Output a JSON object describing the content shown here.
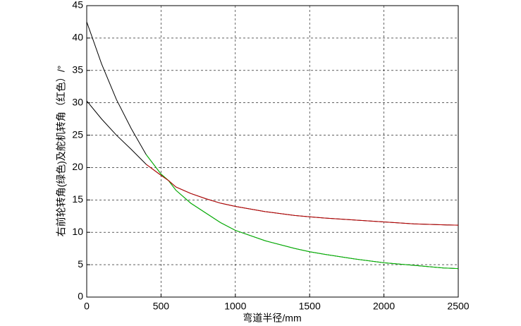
{
  "chart_data": {
    "type": "line",
    "x_label": "弯道半径/mm",
    "y_label": "右前轮转角(绿色)及舵机转角（红色）/°",
    "x": [
      0,
      100,
      200,
      300,
      400,
      500,
      550,
      600,
      700,
      800,
      900,
      1000,
      1200,
      1400,
      1500,
      1600,
      1800,
      2000,
      2200,
      2400,
      2500
    ],
    "series": [
      {
        "color": "#000000",
        "values": [
          42.5,
          36,
          30.5,
          26,
          22,
          19,
          18,
          16.5,
          14.5,
          13,
          11.5,
          10.3,
          8.7,
          7.5,
          7,
          6.6,
          5.9,
          5.3,
          4.9,
          4.5,
          4.4
        ]
      },
      {
        "color": "#000000",
        "values": [
          30.3,
          27.5,
          25,
          22.8,
          20.5,
          18.8,
          18,
          17,
          16,
          15.2,
          14.5,
          14,
          13.2,
          12.6,
          12.4,
          12.2,
          11.9,
          11.6,
          11.3,
          11.15,
          11.1
        ]
      },
      {
        "color": "#00c000",
        "values": [
          null,
          null,
          null,
          null,
          22,
          19,
          18,
          16.5,
          14.5,
          13,
          11.5,
          10.3,
          8.7,
          7.5,
          7,
          6.6,
          5.9,
          5.3,
          4.9,
          4.5,
          4.4
        ]
      },
      {
        "color": "#c00000",
        "values": [
          null,
          null,
          null,
          null,
          20.5,
          18.8,
          18,
          17,
          16,
          15.2,
          14.5,
          14,
          13.2,
          12.6,
          12.4,
          12.2,
          11.9,
          11.6,
          11.3,
          11.15,
          11.1
        ]
      }
    ],
    "xlim": [
      0,
      2500
    ],
    "xticks": [
      0,
      500,
      1000,
      1500,
      2000,
      2500
    ],
    "ylim": [
      0,
      45
    ],
    "yticks": [
      0,
      5,
      10,
      15,
      20,
      25,
      30,
      35,
      40,
      45
    ],
    "grid": true
  }
}
